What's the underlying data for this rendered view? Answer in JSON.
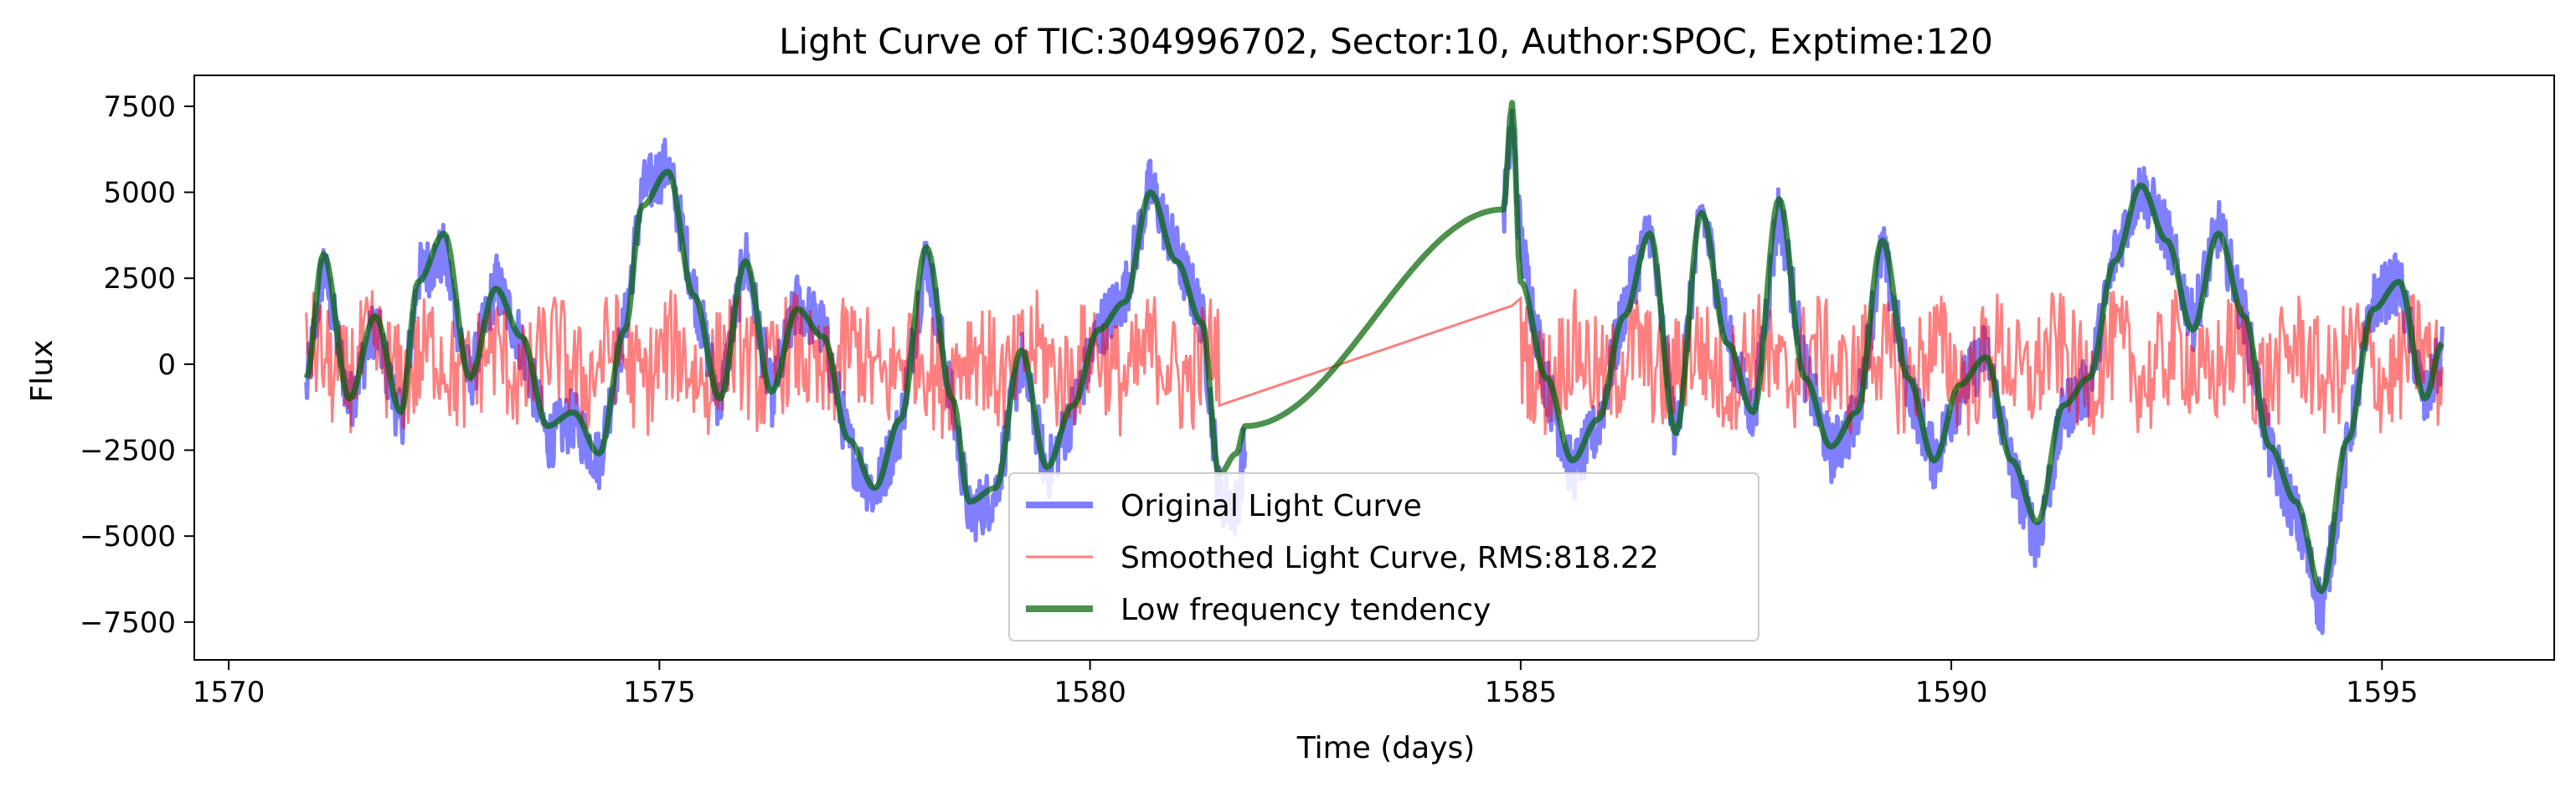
{
  "chart_data": {
    "type": "line",
    "title": "Light Curve of TIC:304996702, Sector:10, Author:SPOC, Exptime:120",
    "xlabel": "Time (days)",
    "ylabel": "Flux",
    "xlim": [
      1569.6,
      1597.0
    ],
    "ylim": [
      -8600,
      8400
    ],
    "xticks": [
      1570,
      1575,
      1580,
      1585,
      1590,
      1595
    ],
    "yticks": [
      -7500,
      -5000,
      -2500,
      0,
      2500,
      5000,
      7500
    ],
    "grid": false,
    "legend": "lower-center",
    "series": [
      {
        "name": "Original Light Curve",
        "color": "#0000ff",
        "x": [
          1570.9,
          1571.1,
          1571.4,
          1571.7,
          1572.0,
          1572.2,
          1572.5,
          1572.8,
          1573.1,
          1573.4,
          1573.7,
          1574.0,
          1574.3,
          1574.6,
          1574.8,
          1575.1,
          1575.4,
          1575.7,
          1576.0,
          1576.3,
          1576.6,
          1576.9,
          1577.2,
          1577.5,
          1577.8,
          1578.1,
          1578.4,
          1578.6,
          1578.9,
          1579.2,
          1579.5,
          1579.8,
          1580.1,
          1580.4,
          1580.7,
          1581.0,
          1581.3,
          1581.5,
          1581.7,
          1581.8,
          1584.8,
          1584.9,
          1585.0,
          1585.3,
          1585.6,
          1585.9,
          1586.2,
          1586.5,
          1586.8,
          1587.1,
          1587.4,
          1587.7,
          1588.0,
          1588.3,
          1588.6,
          1588.9,
          1589.2,
          1589.5,
          1589.8,
          1590.1,
          1590.4,
          1590.7,
          1591.0,
          1591.3,
          1591.6,
          1591.9,
          1592.2,
          1592.5,
          1592.8,
          1593.1,
          1593.4,
          1593.7,
          1594.0,
          1594.3,
          1594.6,
          1594.9,
          1595.2,
          1595.5,
          1595.7
        ],
        "y": [
          -800,
          2900,
          -1200,
          1200,
          -1800,
          2600,
          3200,
          -600,
          2400,
          600,
          -2200,
          -1600,
          -2800,
          1200,
          5000,
          5800,
          2200,
          -1200,
          3200,
          -1000,
          1800,
          1000,
          -2400,
          -3800,
          -1800,
          3200,
          -1200,
          -4400,
          -3800,
          200,
          -3200,
          -1400,
          1000,
          2000,
          5200,
          3200,
          1400,
          -3800,
          -4200,
          -2400,
          4400,
          7000,
          3600,
          -600,
          -3200,
          -1800,
          1600,
          4000,
          -2200,
          4600,
          800,
          -1600,
          4600,
          -200,
          -2600,
          -1600,
          3400,
          -600,
          -2800,
          -800,
          400,
          -3000,
          -5200,
          -1400,
          -600,
          3200,
          5200,
          3800,
          1200,
          4000,
          1400,
          -2600,
          -4400,
          -7200,
          -2400,
          1800,
          2400,
          -1200,
          400
        ]
      },
      {
        "name": "Smoothed Light Curve, RMS:818.22",
        "color": "#ff0000",
        "x": [
          1570.9,
          1581.3,
          1581.5,
          1584.9,
          1585.0,
          1595.7
        ],
        "y": [
          0,
          0,
          -1200,
          1700,
          0,
          0
        ]
      },
      {
        "name": "Low frequency tendency",
        "color": "#006400",
        "x": [
          1570.9,
          1571.1,
          1571.4,
          1571.7,
          1572.0,
          1572.2,
          1572.5,
          1572.8,
          1573.1,
          1573.4,
          1573.7,
          1574.0,
          1574.3,
          1574.6,
          1574.8,
          1575.1,
          1575.4,
          1575.7,
          1576.0,
          1576.3,
          1576.6,
          1576.9,
          1577.2,
          1577.5,
          1577.8,
          1578.1,
          1578.4,
          1578.6,
          1578.9,
          1579.2,
          1579.5,
          1579.8,
          1580.1,
          1580.4,
          1580.7,
          1581.0,
          1581.3,
          1581.5,
          1581.7,
          1581.8,
          1584.8,
          1584.9,
          1585.0,
          1585.3,
          1585.6,
          1585.9,
          1586.2,
          1586.5,
          1586.8,
          1587.1,
          1587.4,
          1587.7,
          1588.0,
          1588.3,
          1588.6,
          1588.9,
          1589.2,
          1589.5,
          1589.8,
          1590.1,
          1590.4,
          1590.7,
          1591.0,
          1591.3,
          1591.6,
          1591.9,
          1592.2,
          1592.5,
          1592.8,
          1593.1,
          1593.4,
          1593.7,
          1594.0,
          1594.3,
          1594.6,
          1594.9,
          1595.2,
          1595.5,
          1595.7
        ],
        "y": [
          -400,
          3200,
          -1000,
          1400,
          -1400,
          2400,
          3800,
          -400,
          2200,
          800,
          -1800,
          -1400,
          -2600,
          1000,
          4600,
          5600,
          2000,
          -1000,
          3000,
          -800,
          1600,
          800,
          -2200,
          -3600,
          -1600,
          3400,
          -1000,
          -4000,
          -3600,
          400,
          -3000,
          -1200,
          1000,
          1800,
          5000,
          3000,
          1200,
          -3200,
          -2600,
          -1800,
          4500,
          7600,
          2400,
          -400,
          -2800,
          -1600,
          1400,
          3800,
          -2000,
          4400,
          600,
          -1400,
          4800,
          -400,
          -2400,
          -1400,
          3600,
          -400,
          -2800,
          -600,
          200,
          -2800,
          -4600,
          -1200,
          -400,
          3000,
          5200,
          3600,
          1000,
          3800,
          1400,
          -2400,
          -4000,
          -6600,
          -2200,
          1600,
          2400,
          -1000,
          600
        ]
      }
    ]
  }
}
